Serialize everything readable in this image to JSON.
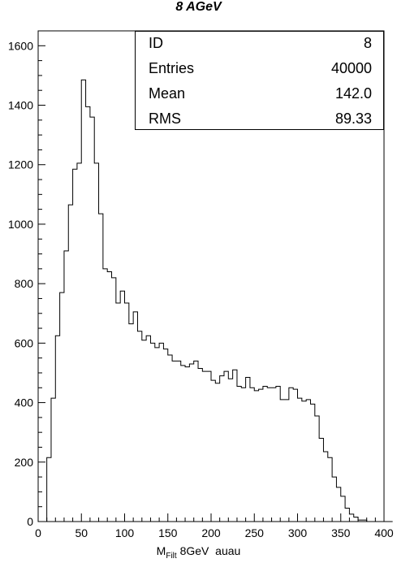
{
  "chart_data": {
    "type": "histogram",
    "title": "8 AGeV",
    "xlabel_main": "M",
    "xlabel_sub": "Filt",
    "xlabel_rest": " 8GeV  auau",
    "xlim": [
      0,
      400
    ],
    "ylim": [
      0,
      1650
    ],
    "x_ticks": [
      0,
      50,
      100,
      150,
      200,
      250,
      300,
      350,
      400
    ],
    "y_ticks": [
      0,
      200,
      400,
      600,
      800,
      1000,
      1200,
      1400,
      1600
    ],
    "bin_width": 5,
    "bin_start": 10,
    "values": [
      215,
      415,
      625,
      770,
      910,
      1065,
      1185,
      1205,
      1485,
      1395,
      1360,
      1205,
      1035,
      850,
      840,
      820,
      735,
      775,
      735,
      665,
      705,
      640,
      610,
      625,
      600,
      585,
      600,
      580,
      560,
      540,
      540,
      525,
      520,
      530,
      540,
      515,
      505,
      505,
      475,
      465,
      490,
      505,
      480,
      510,
      455,
      450,
      485,
      450,
      440,
      445,
      455,
      450,
      450,
      455,
      410,
      410,
      450,
      445,
      415,
      405,
      410,
      395,
      355,
      280,
      235,
      215,
      150,
      115,
      85,
      45,
      25,
      15,
      5,
      5,
      0,
      0,
      0,
      0,
      0,
      0
    ],
    "stats": [
      {
        "label": "ID",
        "value": "8"
      },
      {
        "label": "Entries",
        "value": "40000"
      },
      {
        "label": "Mean",
        "value": "142.0"
      },
      {
        "label": "RMS",
        "value": "89.33"
      }
    ]
  }
}
